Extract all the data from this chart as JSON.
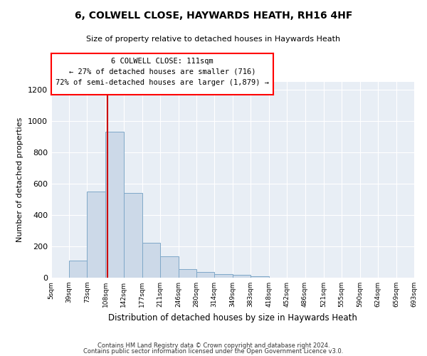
{
  "title": "6, COLWELL CLOSE, HAYWARDS HEATH, RH16 4HF",
  "subtitle": "Size of property relative to detached houses in Haywards Heath",
  "xlabel": "Distribution of detached houses by size in Haywards Heath",
  "ylabel": "Number of detached properties",
  "bar_color": "#ccd9e8",
  "bar_edge_color": "#7fa8c8",
  "background_color": "#e8eef5",
  "grid_color": "#ffffff",
  "annotation_text": "6 COLWELL CLOSE: 111sqm\n← 27% of detached houses are smaller (716)\n72% of semi-detached houses are larger (1,879) →",
  "vline_x": 111,
  "vline_color": "#cc0000",
  "bin_edges": [
    5,
    39,
    73,
    108,
    142,
    177,
    211,
    246,
    280,
    314,
    349,
    383,
    418,
    452,
    486,
    521,
    555,
    590,
    624,
    659,
    693
  ],
  "bar_heights": [
    0,
    110,
    550,
    930,
    540,
    225,
    135,
    55,
    35,
    25,
    18,
    8,
    0,
    0,
    0,
    0,
    0,
    0,
    0,
    0
  ],
  "ylim": [
    0,
    1250
  ],
  "yticks": [
    0,
    200,
    400,
    600,
    800,
    1000,
    1200
  ],
  "tick_labels": [
    "5sqm",
    "39sqm",
    "73sqm",
    "108sqm",
    "142sqm",
    "177sqm",
    "211sqm",
    "246sqm",
    "280sqm",
    "314sqm",
    "349sqm",
    "383sqm",
    "418sqm",
    "452sqm",
    "486sqm",
    "521sqm",
    "555sqm",
    "590sqm",
    "624sqm",
    "659sqm",
    "693sqm"
  ],
  "footnote1": "Contains HM Land Registry data © Crown copyright and database right 2024.",
  "footnote2": "Contains public sector information licensed under the Open Government Licence v3.0."
}
